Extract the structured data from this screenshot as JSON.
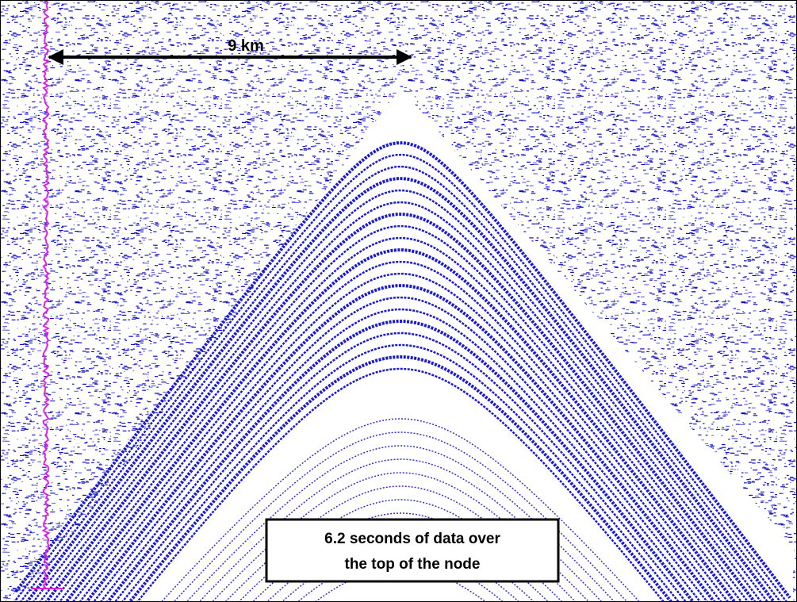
{
  "annotations": {
    "scale_label": "9 km",
    "caption": [
      "6.2 seconds of data over",
      "the top of the node"
    ]
  }
}
